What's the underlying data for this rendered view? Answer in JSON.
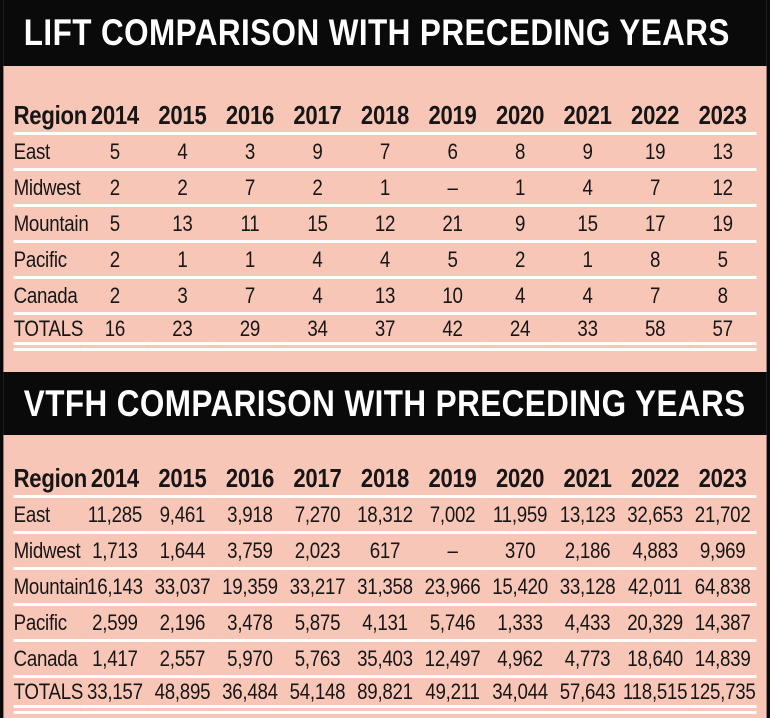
{
  "page": {
    "background_color": "#f8c6b7",
    "bar_color": "#0a0a0a",
    "title_text_color": "#ffffff",
    "body_text_color": "#161616",
    "rule_color": "#ffffff"
  },
  "chart_data": [
    {
      "type": "table",
      "title": "LIFT COMPARISON WITH PRECEDING YEARS",
      "columns": [
        "Region",
        "2014",
        "2015",
        "2016",
        "2017",
        "2018",
        "2019",
        "2020",
        "2021",
        "2022",
        "2023"
      ],
      "rows": [
        {
          "label": "East",
          "is_total": false,
          "values": [
            "5",
            "4",
            "3",
            "9",
            "7",
            "6",
            "8",
            "9",
            "19",
            "13"
          ]
        },
        {
          "label": "Midwest",
          "is_total": false,
          "values": [
            "2",
            "2",
            "7",
            "2",
            "1",
            "–",
            "1",
            "4",
            "7",
            "12"
          ]
        },
        {
          "label": "Mountain",
          "is_total": false,
          "values": [
            "5",
            "13",
            "11",
            "15",
            "12",
            "21",
            "9",
            "15",
            "17",
            "19"
          ]
        },
        {
          "label": "Pacific",
          "is_total": false,
          "values": [
            "2",
            "1",
            "1",
            "4",
            "4",
            "5",
            "2",
            "1",
            "8",
            "5"
          ]
        },
        {
          "label": "Canada",
          "is_total": false,
          "values": [
            "2",
            "3",
            "7",
            "4",
            "13",
            "10",
            "4",
            "4",
            "7",
            "8"
          ]
        },
        {
          "label": "TOTALS",
          "is_total": true,
          "values": [
            "16",
            "23",
            "29",
            "34",
            "37",
            "42",
            "24",
            "33",
            "58",
            "57"
          ]
        }
      ]
    },
    {
      "type": "table",
      "title": "VTFH COMPARISON WITH PRECEDING YEARS",
      "columns": [
        "Region",
        "2014",
        "2015",
        "2016",
        "2017",
        "2018",
        "2019",
        "2020",
        "2021",
        "2022",
        "2023"
      ],
      "rows": [
        {
          "label": "East",
          "is_total": false,
          "values": [
            "11,285",
            "9,461",
            "3,918",
            "7,270",
            "18,312",
            "7,002",
            "11,959",
            "13,123",
            "32,653",
            "21,702"
          ]
        },
        {
          "label": "Midwest",
          "is_total": false,
          "values": [
            "1,713",
            "1,644",
            "3,759",
            "2,023",
            "617",
            "–",
            "370",
            "2,186",
            "4,883",
            "9,969"
          ]
        },
        {
          "label": "Mountain",
          "is_total": false,
          "values": [
            "16,143",
            "33,037",
            "19,359",
            "33,217",
            "31,358",
            "23,966",
            "15,420",
            "33,128",
            "42,011",
            "64,838"
          ]
        },
        {
          "label": "Pacific",
          "is_total": false,
          "values": [
            "2,599",
            "2,196",
            "3,478",
            "5,875",
            "4,131",
            "5,746",
            "1,333",
            "4,433",
            "20,329",
            "14,387"
          ]
        },
        {
          "label": "Canada",
          "is_total": false,
          "values": [
            "1,417",
            "2,557",
            "5,970",
            "5,763",
            "35,403",
            "12,497",
            "4,962",
            "4,773",
            "18,640",
            "14,839"
          ]
        },
        {
          "label": "TOTALS",
          "is_total": true,
          "values": [
            "33,157",
            "48,895",
            "36,484",
            "54,148",
            "89,821",
            "49,211",
            "34,044",
            "57,643",
            "118,515",
            "125,735"
          ]
        }
      ]
    }
  ]
}
